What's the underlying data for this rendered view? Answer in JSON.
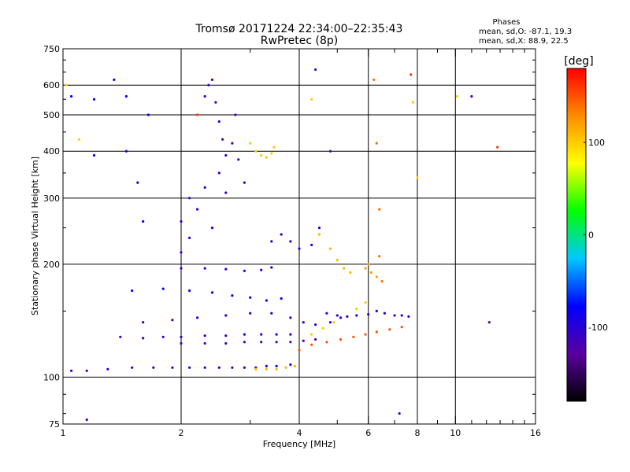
{
  "chart_data": {
    "type": "scatter",
    "title": "Tromsø 20171224 22:34:00–22:35:43",
    "subtitle": "RwPretec (8p)",
    "xlabel": "Frequency [MHz]",
    "ylabel": "Stationary phase Virtual Height [km]",
    "x_scale": "log2",
    "y_scale": "log",
    "xlim": [
      1,
      16
    ],
    "ylim": [
      75,
      750
    ],
    "x_ticks": [
      1,
      2,
      4,
      6,
      8,
      10,
      16
    ],
    "x_tick_labels": [
      "1",
      "2",
      "4",
      "6",
      "8",
      "10",
      "16"
    ],
    "y_ticks": [
      75,
      100,
      200,
      300,
      400,
      500,
      600,
      750
    ],
    "y_tick_labels": [
      "75",
      "100",
      "200",
      "300",
      "400",
      "500",
      "600",
      "750"
    ],
    "grid": true,
    "stats": {
      "heading": "Phases",
      "line1": "mean, sd,O: -87.1, 19.3",
      "line2": "mean, sd,X:  88.9, 22.5"
    },
    "colorbar": {
      "label": "[deg]",
      "range": [
        -180,
        180
      ],
      "ticks": [
        100,
        0,
        -100
      ],
      "tick_labels": [
        "100",
        "0",
        "-100"
      ],
      "colormap": [
        "#000000",
        "#5a00a0",
        "#0000ff",
        "#00c8ff",
        "#00ff00",
        "#ffff00",
        "#ff8c00",
        "#ff0000"
      ]
    },
    "series": [
      {
        "phase_deg": -95,
        "points": [
          [
            1.05,
            104
          ],
          [
            1.15,
            104
          ],
          [
            1.3,
            105
          ],
          [
            1.5,
            106
          ],
          [
            1.7,
            106
          ],
          [
            1.9,
            106
          ],
          [
            2.1,
            106
          ],
          [
            2.3,
            106
          ],
          [
            2.5,
            106
          ],
          [
            2.7,
            106
          ],
          [
            2.9,
            106
          ],
          [
            3.1,
            106
          ],
          [
            3.3,
            107
          ],
          [
            3.5,
            107
          ],
          [
            3.8,
            108
          ]
        ]
      },
      {
        "phase_deg": 110,
        "points": [
          [
            3.1,
            105
          ],
          [
            3.3,
            105
          ],
          [
            3.5,
            105
          ],
          [
            3.7,
            106
          ],
          [
            3.9,
            107
          ]
        ]
      },
      {
        "phase_deg": -120,
        "points": [
          [
            2.0,
            123
          ],
          [
            2.3,
            123
          ],
          [
            2.6,
            123
          ],
          [
            2.9,
            124
          ],
          [
            3.2,
            124
          ],
          [
            3.5,
            124
          ],
          [
            3.8,
            124
          ],
          [
            4.1,
            125
          ],
          [
            4.4,
            126
          ]
        ]
      },
      {
        "phase_deg": 150,
        "points": [
          [
            4.0,
            118
          ],
          [
            4.3,
            122
          ],
          [
            4.7,
            124
          ],
          [
            5.1,
            126
          ],
          [
            5.5,
            128
          ],
          [
            5.9,
            130
          ],
          [
            6.3,
            132
          ],
          [
            6.8,
            134
          ],
          [
            7.3,
            136
          ]
        ]
      },
      {
        "phase_deg": 100,
        "points": [
          [
            4.3,
            130
          ],
          [
            4.6,
            135
          ],
          [
            4.9,
            140
          ],
          [
            5.3,
            145
          ],
          [
            5.6,
            152
          ],
          [
            5.9,
            158
          ]
        ]
      },
      {
        "phase_deg": -100,
        "points": [
          [
            1.4,
            128
          ],
          [
            1.6,
            127
          ],
          [
            1.8,
            128
          ],
          [
            2.0,
            128
          ],
          [
            2.3,
            129
          ],
          [
            2.6,
            129
          ],
          [
            2.9,
            130
          ],
          [
            3.2,
            130
          ],
          [
            3.5,
            130
          ],
          [
            3.8,
            130
          ]
        ]
      },
      {
        "phase_deg": -100,
        "points": [
          [
            1.6,
            140
          ],
          [
            1.9,
            142
          ],
          [
            2.2,
            144
          ],
          [
            2.6,
            146
          ],
          [
            3.0,
            148
          ],
          [
            3.4,
            148
          ],
          [
            3.8,
            144
          ],
          [
            4.1,
            140
          ],
          [
            4.4,
            138
          ],
          [
            4.8,
            140
          ],
          [
            5.1,
            144
          ]
        ]
      },
      {
        "phase_deg": -80,
        "points": [
          [
            1.5,
            170
          ],
          [
            1.8,
            172
          ],
          [
            2.1,
            170
          ],
          [
            2.4,
            168
          ],
          [
            2.7,
            165
          ],
          [
            3.0,
            163
          ],
          [
            3.3,
            160
          ],
          [
            3.6,
            162
          ]
        ]
      },
      {
        "phase_deg": -90,
        "points": [
          [
            2.0,
            195
          ],
          [
            2.3,
            195
          ],
          [
            2.6,
            194
          ],
          [
            2.9,
            192
          ],
          [
            3.2,
            193
          ],
          [
            3.4,
            196
          ]
        ]
      },
      {
        "phase_deg": -100,
        "points": [
          [
            2.0,
            215
          ],
          [
            2.1,
            235
          ],
          [
            2.0,
            260
          ],
          [
            2.2,
            280
          ],
          [
            2.1,
            300
          ],
          [
            2.3,
            320
          ],
          [
            2.4,
            250
          ]
        ]
      },
      {
        "phase_deg": -110,
        "points": [
          [
            2.3,
            560
          ],
          [
            2.35,
            600
          ],
          [
            2.4,
            620
          ],
          [
            2.45,
            540
          ],
          [
            2.5,
            480
          ],
          [
            2.55,
            430
          ],
          [
            2.6,
            390
          ],
          [
            2.5,
            350
          ],
          [
            2.6,
            310
          ],
          [
            2.7,
            420
          ],
          [
            2.8,
            380
          ],
          [
            2.9,
            330
          ],
          [
            2.75,
            500
          ]
        ]
      },
      {
        "phase_deg": 100,
        "points": [
          [
            3.0,
            420
          ],
          [
            3.1,
            400
          ],
          [
            3.2,
            390
          ],
          [
            3.3,
            385
          ],
          [
            3.4,
            395
          ],
          [
            3.45,
            410
          ]
        ]
      },
      {
        "phase_deg": -100,
        "points": [
          [
            3.4,
            230
          ],
          [
            3.6,
            240
          ],
          [
            3.8,
            230
          ],
          [
            4.0,
            220
          ],
          [
            4.3,
            225
          ],
          [
            4.5,
            250
          ]
        ]
      },
      {
        "phase_deg": 110,
        "points": [
          [
            4.5,
            240
          ],
          [
            4.8,
            220
          ],
          [
            5.0,
            205
          ],
          [
            5.2,
            195
          ],
          [
            5.4,
            190
          ]
        ]
      },
      {
        "phase_deg": 120,
        "points": [
          [
            5.9,
            195
          ],
          [
            6.0,
            200
          ],
          [
            6.1,
            190
          ],
          [
            6.3,
            185
          ]
        ]
      },
      {
        "phase_deg": -110,
        "points": [
          [
            4.7,
            148
          ],
          [
            5.0,
            146
          ],
          [
            5.3,
            145
          ],
          [
            5.6,
            146
          ],
          [
            6.0,
            147
          ]
        ]
      },
      {
        "phase_deg": -100,
        "points": [
          [
            6.3,
            150
          ],
          [
            6.6,
            148
          ],
          [
            7.0,
            146
          ],
          [
            7.3,
            146
          ],
          [
            7.6,
            145
          ]
        ]
      },
      {
        "phase_deg": 140,
        "points": [
          [
            6.2,
            620
          ],
          [
            6.3,
            420
          ],
          [
            6.4,
            280
          ],
          [
            6.4,
            210
          ],
          [
            6.5,
            180
          ]
        ]
      },
      {
        "phase_deg": -80,
        "points": [
          [
            1.05,
            560
          ],
          [
            1.2,
            550
          ],
          [
            1.35,
            620
          ],
          [
            1.45,
            560
          ],
          [
            1.55,
            330
          ],
          [
            1.6,
            260
          ],
          [
            1.45,
            400
          ],
          [
            1.65,
            500
          ],
          [
            1.2,
            390
          ]
        ]
      },
      {
        "phase_deg": 100,
        "points": [
          [
            1.02,
            600
          ],
          [
            1.1,
            430
          ],
          [
            4.3,
            550
          ],
          [
            7.8,
            540
          ],
          [
            10.1,
            560
          ],
          [
            8.0,
            340
          ]
        ]
      },
      {
        "phase_deg": -120,
        "points": [
          [
            4.4,
            660
          ],
          [
            4.8,
            400
          ],
          [
            11.0,
            560
          ],
          [
            12.2,
            140
          ],
          [
            7.2,
            80
          ],
          [
            1.15,
            77
          ]
        ]
      },
      {
        "phase_deg": 160,
        "points": [
          [
            7.7,
            640
          ],
          [
            12.8,
            410
          ],
          [
            2.2,
            500
          ]
        ]
      }
    ]
  }
}
